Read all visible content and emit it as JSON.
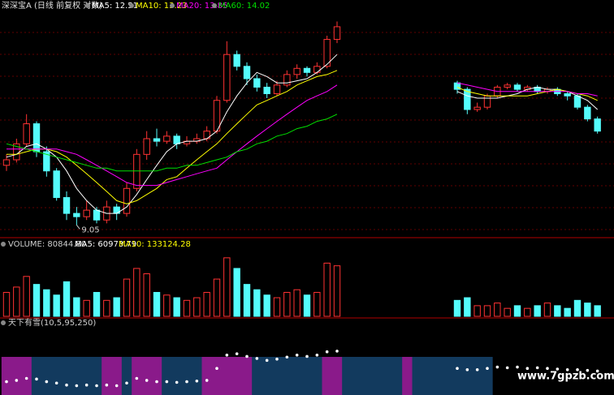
{
  "chart_data": {
    "type": "candlestick",
    "title": "深深宝A (日线 前复权 对数)",
    "log_scale": true,
    "ylim": [
      8.8,
      18
    ],
    "up_color": "#ff3232",
    "down_color": "#54fcfc",
    "annotation": "9.05",
    "open": [
      11.0,
      11.2,
      11.8,
      12.6,
      11.5,
      10.8,
      9.9,
      9.4,
      9.3,
      9.5,
      9.2,
      9.6,
      9.4,
      10.2,
      11.4,
      12.0,
      11.9,
      12.1,
      11.8,
      11.9,
      12.0,
      12.3,
      13.6,
      15.8,
      15.2,
      14.6,
      14.2,
      13.9,
      14.3,
      14.8,
      15.1,
      14.9,
      15.2,
      16.6,
      null,
      null,
      null,
      null,
      null,
      null,
      null,
      null,
      null,
      null,
      null,
      14.4,
      14.1,
      13.2,
      13.3,
      13.8,
      14.2,
      14.3,
      14.1,
      14.2,
      14.0,
      14.1,
      13.9,
      13.8,
      13.3,
      12.8
    ],
    "high": [
      11.4,
      12.0,
      13.0,
      12.7,
      11.7,
      10.9,
      10.1,
      9.6,
      9.8,
      9.6,
      9.8,
      9.7,
      10.4,
      11.6,
      12.3,
      12.4,
      12.3,
      12.2,
      12.1,
      12.2,
      12.5,
      13.8,
      16.5,
      16.0,
      15.4,
      14.8,
      14.4,
      14.5,
      15.0,
      15.3,
      15.2,
      15.4,
      16.8,
      17.6,
      null,
      null,
      null,
      null,
      null,
      null,
      null,
      null,
      null,
      null,
      null,
      14.5,
      14.2,
      13.5,
      13.9,
      14.3,
      14.4,
      14.4,
      14.3,
      14.3,
      14.2,
      14.2,
      14.0,
      13.9,
      13.4,
      12.9
    ],
    "low": [
      10.8,
      11.1,
      11.7,
      11.3,
      10.6,
      9.8,
      9.2,
      9.05,
      9.2,
      9.1,
      9.1,
      9.2,
      9.3,
      10.1,
      11.2,
      11.7,
      11.8,
      11.6,
      11.7,
      11.8,
      11.9,
      12.2,
      13.5,
      15.0,
      14.3,
      14.0,
      13.7,
      13.8,
      14.2,
      14.6,
      14.7,
      14.8,
      15.1,
      16.4,
      null,
      null,
      null,
      null,
      null,
      null,
      null,
      null,
      null,
      null,
      null,
      13.9,
      13.0,
      13.1,
      13.2,
      13.7,
      14.1,
      14.0,
      14.0,
      13.9,
      13.9,
      13.8,
      13.6,
      13.2,
      12.7,
      12.2
    ],
    "close": [
      11.2,
      11.8,
      12.6,
      11.5,
      10.8,
      9.9,
      9.4,
      9.3,
      9.5,
      9.2,
      9.6,
      9.4,
      10.2,
      11.4,
      12.0,
      11.9,
      12.1,
      11.8,
      11.9,
      12.0,
      12.3,
      13.6,
      15.8,
      15.2,
      14.6,
      14.2,
      13.9,
      14.3,
      14.8,
      15.1,
      14.9,
      15.2,
      16.6,
      17.3,
      null,
      null,
      null,
      null,
      null,
      null,
      null,
      null,
      null,
      null,
      null,
      14.1,
      13.2,
      13.3,
      13.8,
      14.2,
      14.3,
      14.1,
      14.2,
      14.0,
      14.1,
      13.9,
      13.8,
      13.3,
      12.8,
      12.3
    ],
    "series": [
      {
        "name": "MA5: 12.51",
        "color": "#ffffff",
        "values": [
          11.3,
          11.4,
          11.7,
          11.8,
          11.6,
          11.3,
          10.8,
          10.2,
          9.8,
          9.5,
          9.4,
          9.4,
          9.6,
          10.0,
          10.5,
          11.0,
          11.5,
          11.8,
          11.9,
          11.9,
          12.0,
          12.3,
          13.1,
          13.8,
          14.4,
          14.9,
          14.7,
          14.4,
          14.4,
          14.5,
          14.6,
          14.9,
          15.3,
          15.8,
          null,
          null,
          null,
          null,
          null,
          null,
          null,
          null,
          null,
          null,
          null,
          14.0,
          13.8,
          13.7,
          13.7,
          13.7,
          13.8,
          13.9,
          14.1,
          14.2,
          14.1,
          14.1,
          14.0,
          13.8,
          13.6,
          13.2
        ]
      },
      {
        "name": "MA10: 13.23",
        "color": "#ffff00",
        "values": [
          11.4,
          11.4,
          11.5,
          11.6,
          11.6,
          11.5,
          11.3,
          11.0,
          10.7,
          10.4,
          10.1,
          9.8,
          9.7,
          9.8,
          10.0,
          10.2,
          10.5,
          10.6,
          10.9,
          11.2,
          11.5,
          11.8,
          12.2,
          12.6,
          13.0,
          13.4,
          13.6,
          13.8,
          14.0,
          14.3,
          14.5,
          14.7,
          14.8,
          15.0,
          null,
          null,
          null,
          null,
          null,
          null,
          null,
          null,
          null,
          null,
          null,
          14.2,
          14.0,
          13.9,
          13.8,
          13.8,
          13.8,
          13.8,
          13.8,
          13.9,
          14.0,
          14.1,
          14.0,
          13.9,
          13.8,
          13.6
        ]
      },
      {
        "name": "MA20: 13.85",
        "color": "#ff00ff",
        "values": [
          11.6,
          11.6,
          11.6,
          11.6,
          11.6,
          11.6,
          11.5,
          11.4,
          11.2,
          11.0,
          10.8,
          10.6,
          10.4,
          10.3,
          10.3,
          10.3,
          10.4,
          10.5,
          10.6,
          10.7,
          10.8,
          10.9,
          11.2,
          11.5,
          11.8,
          12.1,
          12.4,
          12.7,
          13.0,
          13.3,
          13.6,
          13.8,
          14.0,
          14.3,
          null,
          null,
          null,
          null,
          null,
          null,
          null,
          null,
          null,
          null,
          null,
          14.4,
          14.3,
          14.2,
          14.1,
          14.0,
          14.0,
          14.0,
          14.0,
          14.0,
          14.0,
          14.0,
          14.0,
          13.9,
          13.9,
          13.8
        ]
      },
      {
        "name": "MA60: 14.02",
        "color": "#00e000",
        "values": [
          11.8,
          11.7,
          11.6,
          11.5,
          11.4,
          11.3,
          11.2,
          11.1,
          11.0,
          10.9,
          10.9,
          10.8,
          10.8,
          10.8,
          10.8,
          10.8,
          10.9,
          10.9,
          11.0,
          11.0,
          11.1,
          11.2,
          11.3,
          11.5,
          11.6,
          11.8,
          11.9,
          12.1,
          12.2,
          12.4,
          12.5,
          12.7,
          12.8,
          13.0,
          null,
          null,
          null,
          null,
          null,
          null,
          null,
          null,
          null,
          null,
          null,
          null,
          null,
          null,
          null,
          null,
          null,
          null,
          null,
          null,
          null,
          null,
          null,
          null,
          null,
          null
        ]
      }
    ],
    "volume": {
      "label": "VOLUME: 80844.80",
      "ma_labels": [
        "MA5: 60973.79",
        "MA10: 133124.28"
      ],
      "ma_colors": [
        "#ffffff",
        "#ffff00"
      ],
      "ylim": [
        0,
        250000
      ],
      "values": [
        90000,
        110000,
        150000,
        120000,
        100000,
        80000,
        130000,
        70000,
        60000,
        90000,
        60000,
        70000,
        140000,
        180000,
        160000,
        90000,
        80000,
        70000,
        60000,
        70000,
        90000,
        140000,
        220000,
        180000,
        120000,
        100000,
        80000,
        70000,
        90000,
        100000,
        80000,
        90000,
        200000,
        190000,
        null,
        null,
        null,
        null,
        null,
        null,
        null,
        null,
        null,
        null,
        null,
        60000,
        70000,
        40000,
        40000,
        50000,
        30000,
        40000,
        30000,
        40000,
        50000,
        40000,
        30000,
        60000,
        50000,
        40000
      ]
    },
    "indicator": {
      "title": "天下有雪(10,5,95,250)",
      "ylim": [
        0,
        100
      ],
      "dot_color": "#ffffff",
      "values": [
        20,
        22,
        25,
        24,
        20,
        18,
        15,
        14,
        15,
        14,
        15,
        14,
        18,
        25,
        22,
        20,
        20,
        19,
        20,
        21,
        22,
        40,
        60,
        62,
        58,
        55,
        52,
        54,
        57,
        60,
        58,
        60,
        65,
        66,
        null,
        null,
        null,
        null,
        null,
        null,
        null,
        null,
        null,
        null,
        null,
        40,
        38,
        38,
        40,
        42,
        41,
        42,
        40,
        41,
        40,
        39,
        38,
        38,
        37,
        36
      ],
      "band_colors": [
        "#8a1a8a",
        "#8a1a8a",
        "#8a1a8a",
        "#123a5e",
        "#123a5e",
        "#123a5e",
        "#123a5e",
        "#123a5e",
        "#123a5e",
        "#123a5e",
        "#8a1a8a",
        "#8a1a8a",
        "#123a5e",
        "#8a1a8a",
        "#8a1a8a",
        "#8a1a8a",
        "#123a5e",
        "#123a5e",
        "#123a5e",
        "#123a5e",
        "#8a1a8a",
        "#8a1a8a",
        "#8a1a8a",
        "#8a1a8a",
        "#8a1a8a",
        "#123a5e",
        "#123a5e",
        "#123a5e",
        "#123a5e",
        "#123a5e",
        "#123a5e",
        "#123a5e",
        "#8a1a8a",
        "#8a1a8a",
        "#123a5e",
        "#123a5e",
        "#123a5e",
        "#123a5e",
        "#123a5e",
        "#123a5e",
        "#8a1a8a",
        "#123a5e",
        "#123a5e",
        "#123a5e",
        "#123a5e",
        "#123a5e",
        "#123a5e",
        "#123a5e",
        "#123a5e",
        null,
        null,
        null,
        null,
        null,
        null,
        null,
        null,
        null,
        null,
        null
      ]
    },
    "watermark": "www.7gpzb.com"
  }
}
